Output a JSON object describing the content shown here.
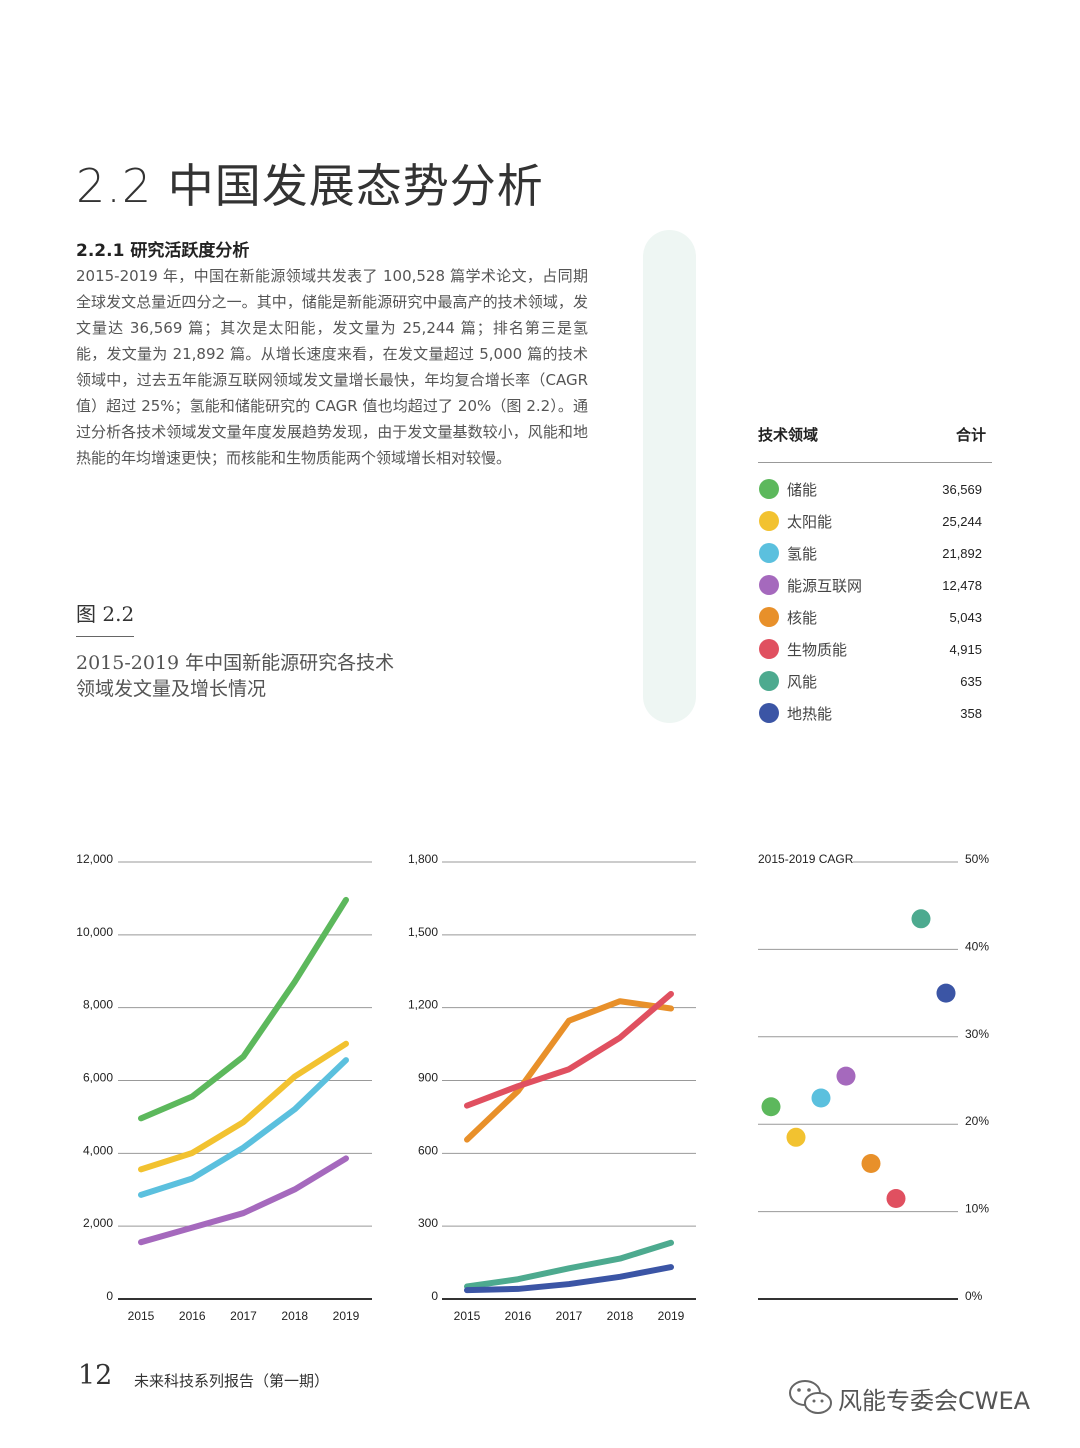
{
  "section_title": "2.2 中国发展态势分析",
  "subsection_title": "2.2.1 研究活跃度分析",
  "body_text": "2015-2019 年，中国在新能源领域共发表了 100,528 篇学术论文，占同期全球发文总量近四分之一。其中，储能是新能源研究中最高产的技术领域，发文量达 36,569 篇；其次是太阳能，发文量为 25,244 篇；排名第三是氢能，发文量为 21,892 篇。从增长速度来看，在发文量超过 5,000 篇的技术领域中，过去五年能源互联网领域发文量增长最快，年均复合增长率（CAGR 值）超过 25%；氢能和储能研究的 CAGR 值也均超过了 20%（图 2.2）。通过分析各技术领域发文量年度发展趋势发现，由于发文量基数较小，风能和地热能的年均增速更快；而核能和生物质能两个领域增长相对较慢。",
  "figure": {
    "label": "图 2.2",
    "caption": "2015-2019 年中国新能源研究各技术领域发文量及增长情况"
  },
  "legend": {
    "header_field": "技术领域",
    "header_total": "合计",
    "items": [
      {
        "name": "储能",
        "total": "36,569",
        "color": "#5cb85c"
      },
      {
        "name": "太阳能",
        "total": "25,244",
        "color": "#f2c230"
      },
      {
        "name": "氢能",
        "total": "21,892",
        "color": "#5bc0de"
      },
      {
        "name": "能源互联网",
        "total": "12,478",
        "color": "#a569bd"
      },
      {
        "name": "核能",
        "total": "5,043",
        "color": "#e8902a"
      },
      {
        "name": "生物质能",
        "total": "4,915",
        "color": "#e05060"
      },
      {
        "name": "风能",
        "total": "635",
        "color": "#4daa8f"
      },
      {
        "name": "地热能",
        "total": "358",
        "color": "#3b55a5"
      }
    ]
  },
  "chart_data": [
    {
      "type": "line",
      "x": [
        "2015",
        "2016",
        "2017",
        "2018",
        "2019"
      ],
      "ylim": [
        0,
        12000
      ],
      "yticks": [
        "0",
        "2,000",
        "4,000",
        "6,000",
        "8,000",
        "10,000",
        "12,000"
      ],
      "series": [
        {
          "name": "储能",
          "color": "#5cb85c",
          "values": [
            4850,
            5450,
            6550,
            8600,
            10850
          ]
        },
        {
          "name": "太阳能",
          "color": "#f2c230",
          "values": [
            3450,
            3900,
            4750,
            6000,
            6900
          ]
        },
        {
          "name": "氢能",
          "color": "#5bc0de",
          "values": [
            2750,
            3200,
            4050,
            5100,
            6450
          ]
        },
        {
          "name": "能源互联网",
          "color": "#a569bd",
          "values": [
            1450,
            1850,
            2250,
            2900,
            3750
          ]
        }
      ]
    },
    {
      "type": "line",
      "x": [
        "2015",
        "2016",
        "2017",
        "2018",
        "2019"
      ],
      "ylim": [
        0,
        1800
      ],
      "yticks": [
        "0",
        "300",
        "600",
        "900",
        "1,200",
        "1,500",
        "1,800"
      ],
      "series": [
        {
          "name": "核能",
          "color": "#e8902a",
          "values": [
            640,
            840,
            1130,
            1210,
            1180
          ]
        },
        {
          "name": "生物质能",
          "color": "#e05060",
          "values": [
            780,
            860,
            930,
            1060,
            1240
          ]
        },
        {
          "name": "风能",
          "color": "#4daa8f",
          "values": [
            35,
            65,
            110,
            150,
            215
          ]
        },
        {
          "name": "地热能",
          "color": "#3b55a5",
          "values": [
            20,
            25,
            45,
            75,
            115
          ]
        }
      ]
    },
    {
      "type": "scatter",
      "title": "2015-2019 CAGR",
      "ylim": [
        0,
        50
      ],
      "yticks": [
        "0%",
        "10%",
        "20%",
        "30%",
        "40%",
        "50%"
      ],
      "points": [
        {
          "name": "储能",
          "color": "#5cb85c",
          "value": 22
        },
        {
          "name": "太阳能",
          "color": "#f2c230",
          "value": 18.5
        },
        {
          "name": "氢能",
          "color": "#5bc0de",
          "value": 23
        },
        {
          "name": "能源互联网",
          "color": "#a569bd",
          "value": 25.5
        },
        {
          "name": "核能",
          "color": "#e8902a",
          "value": 15.5
        },
        {
          "name": "生物质能",
          "color": "#e05060",
          "value": 11.5
        },
        {
          "name": "风能",
          "color": "#4daa8f",
          "value": 43.5
        },
        {
          "name": "地热能",
          "color": "#3b55a5",
          "value": 35
        }
      ]
    }
  ],
  "footer": {
    "page_number": "12",
    "series_name": "未来科技系列报告（第一期）",
    "watermark": "风能专委会CWEA",
    "watermark_icon": "wechat-icon"
  }
}
